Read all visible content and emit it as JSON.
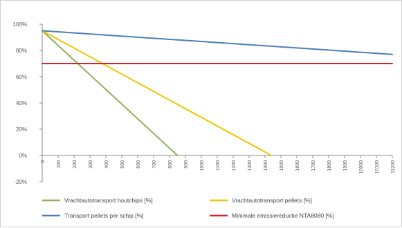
{
  "chart_data": {
    "type": "line",
    "x": [
      0,
      100,
      200,
      300,
      400,
      500,
      600,
      700,
      800,
      900,
      1000,
      1100,
      1200,
      1300,
      1400,
      1500,
      1600,
      1700,
      1800,
      1900,
      2000,
      2100,
      2200
    ],
    "x_tick_labels": [
      "0",
      "100",
      "200",
      "300",
      "400",
      "500",
      "600",
      "700",
      "800",
      "900",
      "1000",
      "1100",
      "1200",
      "1300",
      "1400",
      "1500",
      "1600",
      "1700",
      "1800",
      "1900",
      "10000",
      "10100",
      "11200"
    ],
    "y_ticks": [
      -20,
      0,
      20,
      40,
      60,
      80,
      100
    ],
    "y_tick_labels": [
      "-20%",
      "0%",
      "20%",
      "40%",
      "60%",
      "80%",
      "100%"
    ],
    "ylim": [
      -20,
      100
    ],
    "xlim": [
      0,
      2200
    ],
    "grid": false,
    "legend_position": "bottom",
    "series": [
      {
        "name": "Vrachtautotransport houtchips [%]",
        "color": "#8fb05a",
        "points": [
          [
            0,
            95
          ],
          [
            850,
            0
          ]
        ]
      },
      {
        "name": "Vrachtautotransport pellets [%]",
        "color": "#f2c500",
        "points": [
          [
            0,
            95
          ],
          [
            1440,
            0
          ]
        ]
      },
      {
        "name": "Transport pellets per schip [%]",
        "color": "#4a7ebb",
        "points": [
          [
            0,
            95
          ],
          [
            2200,
            77
          ]
        ]
      },
      {
        "name": "Minimale emissiereductie NTA8080 [%]",
        "color": "#dd1f26",
        "points": [
          [
            0,
            70
          ],
          [
            2200,
            70
          ]
        ]
      }
    ]
  }
}
